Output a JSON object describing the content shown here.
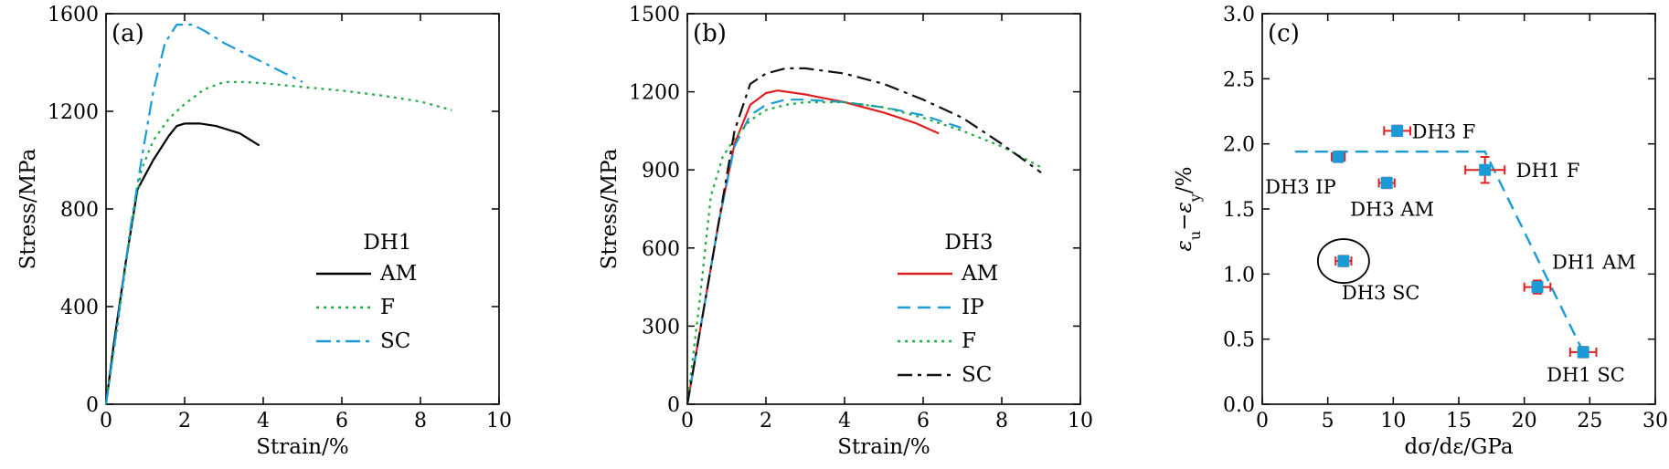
{
  "chart_data": [
    {
      "type": "line",
      "panel_label": "(a)",
      "xlabel": "Strain/%",
      "ylabel": "Stress/MPa",
      "xlim": [
        0,
        10
      ],
      "ylim": [
        0,
        1600
      ],
      "xticks": [
        0,
        2,
        4,
        6,
        8,
        10
      ],
      "yticks": [
        0,
        400,
        800,
        1200,
        1600
      ],
      "legend_title": "DH1",
      "legend_position": "bottom-right",
      "series": [
        {
          "name": "AM",
          "color": "#000000",
          "dash": "solid",
          "x": [
            0,
            0.2,
            0.5,
            0.8,
            1.2,
            1.6,
            1.8,
            2.0,
            2.4,
            2.8,
            3.4,
            3.9
          ],
          "y": [
            0,
            250,
            580,
            880,
            1000,
            1100,
            1140,
            1150,
            1150,
            1140,
            1110,
            1060
          ]
        },
        {
          "name": "F",
          "color": "#22aa44",
          "dash": "dot",
          "x": [
            0,
            0.3,
            0.6,
            0.9,
            1.2,
            1.6,
            2.0,
            2.5,
            3.0,
            3.5,
            4.0,
            5.0,
            6.0,
            7.0,
            8.0,
            8.8
          ],
          "y": [
            0,
            330,
            680,
            960,
            1080,
            1170,
            1230,
            1290,
            1320,
            1320,
            1315,
            1300,
            1285,
            1265,
            1240,
            1205
          ]
        },
        {
          "name": "SC",
          "color": "#1a9ad6",
          "dash": "dashdot",
          "x": [
            0,
            0.3,
            0.6,
            0.9,
            1.2,
            1.5,
            1.8,
            2.2,
            2.5,
            3.0,
            4.0,
            5.0
          ],
          "y": [
            0,
            340,
            700,
            1000,
            1280,
            1480,
            1555,
            1555,
            1530,
            1480,
            1400,
            1320
          ]
        }
      ]
    },
    {
      "type": "line",
      "panel_label": "(b)",
      "xlabel": "Strain/%",
      "ylabel": "Stress/MPa",
      "xlim": [
        0,
        10
      ],
      "ylim": [
        0,
        1500
      ],
      "xticks": [
        0,
        2,
        4,
        6,
        8,
        10
      ],
      "yticks": [
        0,
        300,
        600,
        900,
        1200,
        1500
      ],
      "legend_title": "DH3",
      "legend_position": "bottom-right",
      "series": [
        {
          "name": "AM",
          "color": "#e02020",
          "dash": "solid",
          "x": [
            0,
            0.4,
            0.8,
            1.2,
            1.6,
            2.0,
            2.3,
            3.0,
            4.0,
            5.0,
            5.8,
            6.4
          ],
          "y": [
            0,
            350,
            700,
            1000,
            1150,
            1195,
            1205,
            1190,
            1160,
            1120,
            1080,
            1040
          ]
        },
        {
          "name": "IP",
          "color": "#1a9ad6",
          "dash": "dash",
          "x": [
            0,
            0.4,
            0.8,
            1.2,
            1.6,
            2.0,
            2.5,
            3.0,
            4.0,
            5.0,
            6.0,
            7.0
          ],
          "y": [
            0,
            350,
            700,
            990,
            1110,
            1150,
            1170,
            1170,
            1160,
            1140,
            1110,
            1060
          ]
        },
        {
          "name": "F",
          "color": "#22aa44",
          "dash": "dot",
          "x": [
            0,
            0.3,
            0.6,
            0.9,
            1.2,
            1.6,
            2.0,
            2.5,
            3.0,
            4.0,
            5.0,
            6.0,
            7.0,
            8.0,
            9.0
          ],
          "y": [
            0,
            380,
            800,
            950,
            1020,
            1090,
            1130,
            1150,
            1160,
            1160,
            1140,
            1100,
            1050,
            990,
            910
          ]
        },
        {
          "name": "SC",
          "color": "#111111",
          "dash": "dashdot",
          "x": [
            0,
            0.4,
            0.8,
            1.2,
            1.6,
            2.0,
            2.5,
            3.0,
            4.0,
            5.0,
            6.0,
            7.0,
            8.0,
            9.0
          ],
          "y": [
            0,
            350,
            700,
            1050,
            1230,
            1270,
            1290,
            1290,
            1270,
            1230,
            1170,
            1100,
            1000,
            890
          ]
        }
      ]
    },
    {
      "type": "scatter",
      "panel_label": "(c)",
      "xlabel": "dσ/dε/GPa",
      "ylabel": "εu−εy/%",
      "xlim": [
        0,
        30
      ],
      "ylim": [
        0,
        3.0
      ],
      "xticks": [
        0,
        5,
        10,
        15,
        20,
        25,
        30
      ],
      "yticks": [
        0.0,
        0.5,
        1.0,
        1.5,
        2.0,
        2.5,
        3.0
      ],
      "points": [
        {
          "label": "DH3 F",
          "x": 10.3,
          "y": 2.1,
          "xerr": 1.0,
          "yerr": 0.04
        },
        {
          "label": "DH3 IP",
          "x": 5.8,
          "y": 1.9,
          "xerr": 0.5,
          "yerr": 0.04
        },
        {
          "label": "DH3 AM",
          "x": 9.5,
          "y": 1.7,
          "xerr": 0.6,
          "yerr": 0.04
        },
        {
          "label": "DH1 F",
          "x": 17.0,
          "y": 1.8,
          "xerr": 1.5,
          "yerr": 0.1
        },
        {
          "label": "DH3 SC",
          "x": 6.2,
          "y": 1.1,
          "xerr": 0.6,
          "yerr": 0.04
        },
        {
          "label": "DH1 AM",
          "x": 21.0,
          "y": 0.9,
          "xerr": 1.0,
          "yerr": 0.05
        },
        {
          "label": "DH1 SC",
          "x": 24.5,
          "y": 0.4,
          "xerr": 1.0,
          "yerr": 0.04
        }
      ],
      "trend_line": {
        "x": [
          2.5,
          17.0,
          24.5
        ],
        "y": [
          1.94,
          1.94,
          0.4
        ],
        "color": "#1a9ad6",
        "dash": "dash"
      },
      "highlight_ellipse_around": "DH3 SC",
      "marker_color": "#1a9ad6",
      "errorbar_color": "#e02020"
    }
  ]
}
